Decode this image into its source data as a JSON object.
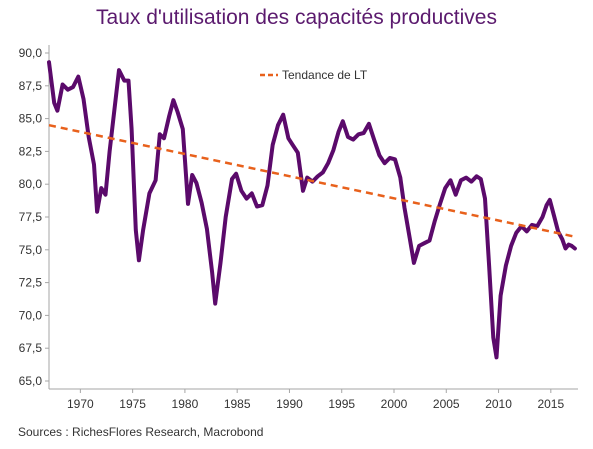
{
  "chart_data": {
    "type": "line",
    "title": "Taux d'utilisation des capacités productives",
    "source": "Sources : RichesFlores Research, Macrobond",
    "xlim": [
      1967,
      2017.6
    ],
    "ylim": [
      65,
      90
    ],
    "xticks": [
      1970,
      1975,
      1980,
      1985,
      1990,
      1995,
      2000,
      2005,
      2010,
      2015
    ],
    "yticks": [
      65,
      67.5,
      70,
      72.5,
      75,
      77.5,
      80,
      82.5,
      85,
      87.5,
      90
    ],
    "ytick_labels": [
      "65,0",
      "67,5",
      "70,0",
      "72,5",
      "75,0",
      "77,5",
      "80,0",
      "82,5",
      "85,0",
      "87,5",
      "90,0"
    ],
    "grid": false,
    "legend_position": "top-center",
    "series": [
      {
        "name": "",
        "color": "#5b0a6b",
        "style": "solid",
        "points": [
          [
            1967.0,
            89.3
          ],
          [
            1967.5,
            86.2
          ],
          [
            1967.8,
            85.6
          ],
          [
            1968.3,
            87.6
          ],
          [
            1968.8,
            87.2
          ],
          [
            1969.3,
            87.4
          ],
          [
            1969.8,
            88.2
          ],
          [
            1970.3,
            86.5
          ],
          [
            1970.8,
            83.6
          ],
          [
            1971.3,
            81.5
          ],
          [
            1971.6,
            77.9
          ],
          [
            1972.0,
            79.7
          ],
          [
            1972.4,
            79.2
          ],
          [
            1972.8,
            82.5
          ],
          [
            1973.3,
            86.0
          ],
          [
            1973.7,
            88.7
          ],
          [
            1974.2,
            87.9
          ],
          [
            1974.6,
            87.9
          ],
          [
            1974.9,
            84.2
          ],
          [
            1975.3,
            76.5
          ],
          [
            1975.6,
            74.2
          ],
          [
            1976.0,
            76.5
          ],
          [
            1976.6,
            79.3
          ],
          [
            1977.2,
            80.3
          ],
          [
            1977.6,
            83.8
          ],
          [
            1978.0,
            83.5
          ],
          [
            1978.5,
            85.2
          ],
          [
            1978.9,
            86.4
          ],
          [
            1979.3,
            85.5
          ],
          [
            1979.8,
            84.2
          ],
          [
            1980.3,
            78.5
          ],
          [
            1980.7,
            80.7
          ],
          [
            1981.1,
            80.1
          ],
          [
            1981.6,
            78.6
          ],
          [
            1982.1,
            76.6
          ],
          [
            1982.6,
            73.3
          ],
          [
            1982.9,
            70.9
          ],
          [
            1983.4,
            74.0
          ],
          [
            1983.9,
            77.5
          ],
          [
            1984.5,
            80.4
          ],
          [
            1984.9,
            80.8
          ],
          [
            1985.4,
            79.5
          ],
          [
            1985.9,
            78.9
          ],
          [
            1986.4,
            79.3
          ],
          [
            1986.9,
            78.3
          ],
          [
            1987.4,
            78.4
          ],
          [
            1987.9,
            79.9
          ],
          [
            1988.4,
            83.0
          ],
          [
            1988.9,
            84.5
          ],
          [
            1989.4,
            85.3
          ],
          [
            1989.9,
            83.5
          ],
          [
            1990.3,
            83.0
          ],
          [
            1990.8,
            82.4
          ],
          [
            1991.3,
            79.5
          ],
          [
            1991.7,
            80.5
          ],
          [
            1992.2,
            80.2
          ],
          [
            1992.7,
            80.6
          ],
          [
            1993.2,
            80.9
          ],
          [
            1993.7,
            81.6
          ],
          [
            1994.2,
            82.6
          ],
          [
            1994.7,
            84.0
          ],
          [
            1995.1,
            84.8
          ],
          [
            1995.6,
            83.6
          ],
          [
            1996.1,
            83.4
          ],
          [
            1996.6,
            83.8
          ],
          [
            1997.1,
            83.9
          ],
          [
            1997.6,
            84.6
          ],
          [
            1998.1,
            83.4
          ],
          [
            1998.6,
            82.2
          ],
          [
            1999.1,
            81.6
          ],
          [
            1999.6,
            82.0
          ],
          [
            2000.1,
            81.9
          ],
          [
            2000.6,
            80.5
          ],
          [
            2001.0,
            78.2
          ],
          [
            2001.5,
            75.9
          ],
          [
            2001.9,
            74.0
          ],
          [
            2002.4,
            75.3
          ],
          [
            2002.9,
            75.5
          ],
          [
            2003.4,
            75.7
          ],
          [
            2003.9,
            77.2
          ],
          [
            2004.4,
            78.5
          ],
          [
            2004.9,
            79.7
          ],
          [
            2005.4,
            80.3
          ],
          [
            2005.9,
            79.2
          ],
          [
            2006.4,
            80.3
          ],
          [
            2006.9,
            80.5
          ],
          [
            2007.4,
            80.2
          ],
          [
            2007.9,
            80.6
          ],
          [
            2008.3,
            80.4
          ],
          [
            2008.7,
            78.9
          ],
          [
            2009.1,
            73.8
          ],
          [
            2009.5,
            68.3
          ],
          [
            2009.8,
            66.8
          ],
          [
            2010.2,
            71.5
          ],
          [
            2010.7,
            73.8
          ],
          [
            2011.2,
            75.3
          ],
          [
            2011.7,
            76.3
          ],
          [
            2012.2,
            76.8
          ],
          [
            2012.7,
            76.4
          ],
          [
            2013.2,
            76.9
          ],
          [
            2013.7,
            76.8
          ],
          [
            2014.2,
            77.5
          ],
          [
            2014.6,
            78.4
          ],
          [
            2014.9,
            78.8
          ],
          [
            2015.3,
            77.6
          ],
          [
            2015.7,
            76.4
          ],
          [
            2016.1,
            75.8
          ],
          [
            2016.4,
            75.1
          ],
          [
            2016.7,
            75.4
          ],
          [
            2017.0,
            75.3
          ],
          [
            2017.3,
            75.1
          ]
        ]
      },
      {
        "name": "Tendance de LT",
        "color": "#e8611c",
        "style": "dashed",
        "points": [
          [
            1967.0,
            84.5
          ],
          [
            2017.3,
            76.0
          ]
        ]
      }
    ]
  }
}
